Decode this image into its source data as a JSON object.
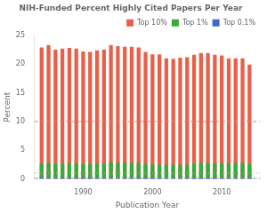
{
  "chart_data": {
    "type": "bar",
    "title": "NIH-Funded Percent Highly Cited Papers Per Year",
    "xlabel": "Publication Year",
    "ylabel": "Percent",
    "x": [
      1984,
      1985,
      1986,
      1987,
      1988,
      1989,
      1990,
      1991,
      1992,
      1993,
      1994,
      1995,
      1996,
      1997,
      1998,
      1999,
      2000,
      2001,
      2002,
      2003,
      2004,
      2005,
      2006,
      2007,
      2008,
      2009,
      2010,
      2011,
      2012,
      2013,
      2014
    ],
    "series": [
      {
        "name": "Top 10%",
        "color": "#e8604a",
        "values": [
          22.9,
          23.3,
          22.5,
          22.7,
          22.8,
          22.7,
          22.2,
          22.1,
          22.4,
          22.5,
          23.3,
          23.1,
          23.0,
          23.0,
          22.9,
          22.1,
          21.7,
          21.7,
          21.0,
          20.9,
          21.1,
          21.2,
          21.6,
          21.9,
          21.9,
          21.6,
          21.5,
          21.0,
          21.0,
          21.0,
          19.9
        ]
      },
      {
        "name": "Top 1%",
        "color": "#3aaa3a",
        "values": [
          2.7,
          2.8,
          2.6,
          2.7,
          2.8,
          2.7,
          2.6,
          2.6,
          2.7,
          2.7,
          2.9,
          2.8,
          2.8,
          2.8,
          2.8,
          2.6,
          2.5,
          2.5,
          2.5,
          2.5,
          2.5,
          2.5,
          2.7,
          2.8,
          2.8,
          2.7,
          2.7,
          2.7,
          2.8,
          2.8,
          2.6
        ]
      },
      {
        "name": "Top 0.1%",
        "color": "#4466cc",
        "values": [
          0.25,
          0.28,
          0.24,
          0.25,
          0.26,
          0.25,
          0.24,
          0.23,
          0.25,
          0.25,
          0.27,
          0.26,
          0.26,
          0.26,
          0.27,
          0.24,
          0.23,
          0.23,
          0.22,
          0.23,
          0.23,
          0.23,
          0.25,
          0.26,
          0.26,
          0.25,
          0.25,
          0.25,
          0.26,
          0.26,
          0.24
        ]
      }
    ],
    "xlim": [
      1983.0,
      2015.5
    ],
    "xticks": [
      1990,
      2000,
      2010
    ],
    "ylim": [
      0,
      25
    ],
    "yticks": [
      0,
      5,
      10,
      15,
      20,
      25
    ],
    "grid": false,
    "stacked": false,
    "legend": "upper right",
    "reference_lines": [
      {
        "value": 10.0,
        "color": "#e08080",
        "line_style": "dashed"
      },
      {
        "value": 1.0,
        "color": "#aaaaaa",
        "line_style": "dotted"
      },
      {
        "value": 0.1,
        "color": "#8888cc",
        "line_style": "dashed"
      }
    ]
  }
}
